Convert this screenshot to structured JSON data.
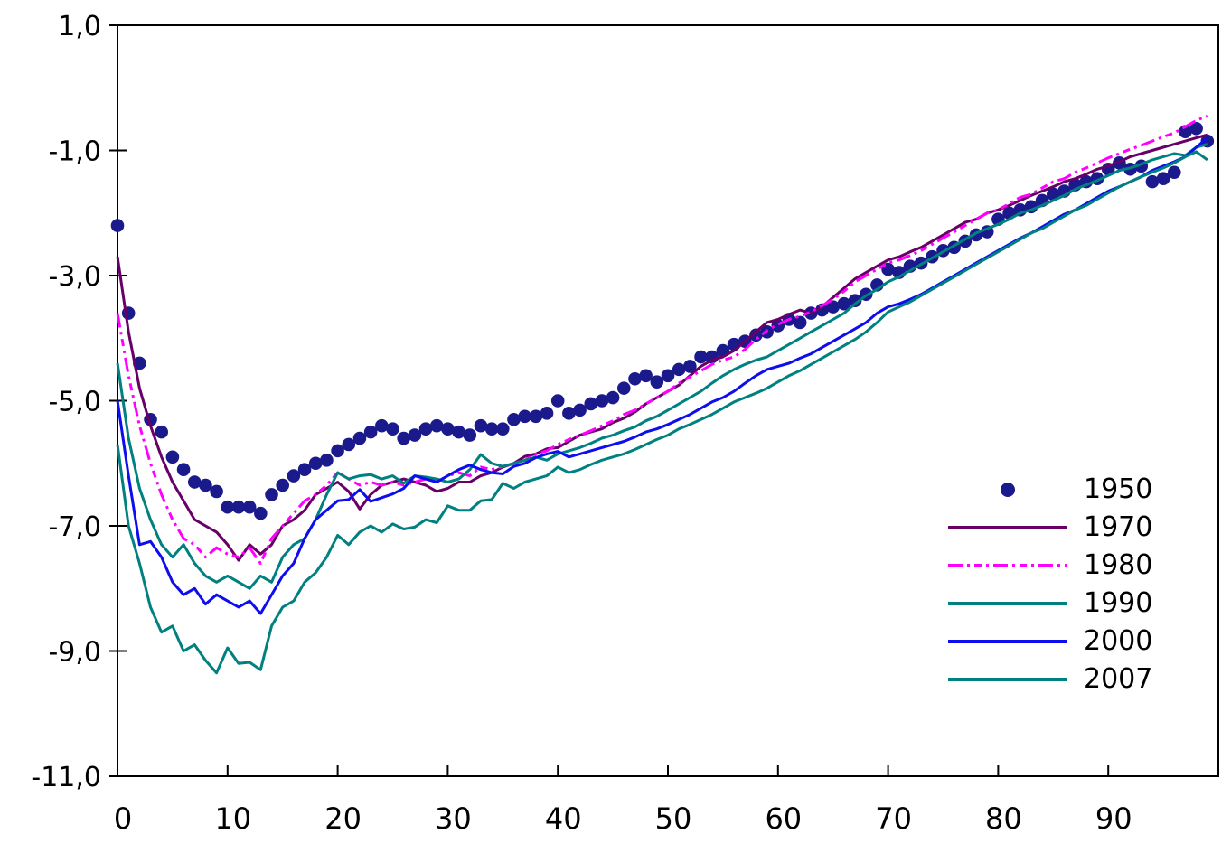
{
  "chart_data": {
    "type": "line",
    "title": "",
    "xlabel": "",
    "ylabel": "",
    "xlim": [
      0,
      100
    ],
    "ylim": [
      -11,
      1
    ],
    "grid": false,
    "legend_position": "right-middle",
    "x_ticks": [
      {
        "v": 0,
        "label": "0"
      },
      {
        "v": 10,
        "label": "10"
      },
      {
        "v": 20,
        "label": "20"
      },
      {
        "v": 30,
        "label": "30"
      },
      {
        "v": 40,
        "label": "40"
      },
      {
        "v": 50,
        "label": "50"
      },
      {
        "v": 60,
        "label": "60"
      },
      {
        "v": 70,
        "label": "70"
      },
      {
        "v": 80,
        "label": "80"
      },
      {
        "v": 90,
        "label": "90"
      }
    ],
    "y_ticks": [
      {
        "v": 1,
        "label": "1,0"
      },
      {
        "v": -1,
        "label": "-1,0"
      },
      {
        "v": -3,
        "label": "-3,0"
      },
      {
        "v": -5,
        "label": "-5,0"
      },
      {
        "v": -7,
        "label": "-7,0"
      },
      {
        "v": -9,
        "label": "-9,0"
      },
      {
        "v": -11,
        "label": "-11,0"
      }
    ],
    "x_start": 0,
    "x_step": 1,
    "series": [
      {
        "name": "1950",
        "kind": "scatter",
        "color": "#1a1a8c",
        "values": [
          -2.2,
          -3.6,
          -4.4,
          -5.3,
          -5.5,
          -5.9,
          -6.1,
          -6.3,
          -6.35,
          -6.45,
          -6.7,
          -6.7,
          -6.7,
          -6.8,
          -6.5,
          -6.35,
          -6.2,
          -6.1,
          -6.0,
          -5.95,
          -5.8,
          -5.7,
          -5.6,
          -5.5,
          -5.4,
          -5.45,
          -5.6,
          -5.55,
          -5.45,
          -5.4,
          -5.45,
          -5.5,
          -5.55,
          -5.4,
          -5.45,
          -5.45,
          -5.3,
          -5.25,
          -5.25,
          -5.2,
          -5.0,
          -5.2,
          -5.15,
          -5.05,
          -5.0,
          -4.95,
          -4.8,
          -4.65,
          -4.6,
          -4.7,
          -4.6,
          -4.5,
          -4.45,
          -4.3,
          -4.3,
          -4.2,
          -4.1,
          -4.05,
          -3.95,
          -3.9,
          -3.8,
          -3.7,
          -3.75,
          -3.6,
          -3.55,
          -3.5,
          -3.45,
          -3.4,
          -3.3,
          -3.15,
          -2.9,
          -2.95,
          -2.85,
          -2.8,
          -2.7,
          -2.6,
          -2.55,
          -2.45,
          -2.35,
          -2.3,
          -2.1,
          -2.0,
          -1.95,
          -1.9,
          -1.8,
          -1.7,
          -1.65,
          -1.55,
          -1.5,
          -1.45,
          -1.3,
          -1.2,
          -1.3,
          -1.25,
          -1.5,
          -1.45,
          -1.35,
          -0.7,
          -0.65,
          -0.85
        ]
      },
      {
        "name": "1970",
        "kind": "line",
        "color": "#670067",
        "values": [
          -2.7,
          -3.9,
          -4.8,
          -5.4,
          -5.9,
          -6.3,
          -6.6,
          -6.9,
          -7.0,
          -7.1,
          -7.3,
          -7.55,
          -7.3,
          -7.45,
          -7.3,
          -7.0,
          -6.9,
          -6.75,
          -6.5,
          -6.4,
          -6.3,
          -6.45,
          -6.73,
          -6.5,
          -6.35,
          -6.3,
          -6.25,
          -6.3,
          -6.35,
          -6.45,
          -6.4,
          -6.3,
          -6.3,
          -6.2,
          -6.15,
          -6.06,
          -6.0,
          -5.89,
          -5.85,
          -5.77,
          -5.75,
          -5.65,
          -5.55,
          -5.5,
          -5.45,
          -5.35,
          -5.28,
          -5.18,
          -5.05,
          -4.95,
          -4.85,
          -4.75,
          -4.6,
          -4.45,
          -4.35,
          -4.3,
          -4.2,
          -4.05,
          -3.9,
          -3.75,
          -3.7,
          -3.62,
          -3.55,
          -3.6,
          -3.5,
          -3.35,
          -3.2,
          -3.05,
          -2.95,
          -2.85,
          -2.75,
          -2.7,
          -2.62,
          -2.55,
          -2.45,
          -2.35,
          -2.25,
          -2.15,
          -2.1,
          -2.0,
          -1.95,
          -1.88,
          -1.8,
          -1.72,
          -1.65,
          -1.58,
          -1.5,
          -1.45,
          -1.38,
          -1.3,
          -1.25,
          -1.18,
          -1.1,
          -1.05,
          -1.0,
          -0.95,
          -0.9,
          -0.85,
          -0.8,
          -0.75
        ]
      },
      {
        "name": "1980",
        "kind": "line",
        "color": "#ff00ff",
        "dash": [
          16,
          5,
          3,
          5,
          8,
          5,
          3,
          5
        ],
        "values": [
          -3.6,
          -4.6,
          -5.4,
          -6.0,
          -6.5,
          -6.9,
          -7.2,
          -7.3,
          -7.5,
          -7.35,
          -7.45,
          -7.5,
          -7.35,
          -7.6,
          -7.2,
          -7.0,
          -6.8,
          -6.6,
          -6.5,
          -6.35,
          -6.15,
          -6.25,
          -6.35,
          -6.3,
          -6.35,
          -6.3,
          -6.35,
          -6.3,
          -6.25,
          -6.3,
          -6.2,
          -6.15,
          -6.2,
          -6.06,
          -6.1,
          -6.05,
          -6.0,
          -5.95,
          -5.85,
          -5.8,
          -5.7,
          -5.62,
          -5.55,
          -5.48,
          -5.4,
          -5.32,
          -5.22,
          -5.15,
          -5.05,
          -4.95,
          -4.85,
          -4.72,
          -4.62,
          -4.52,
          -4.42,
          -4.35,
          -4.3,
          -4.18,
          -4.02,
          -3.88,
          -3.78,
          -3.7,
          -3.65,
          -3.58,
          -3.48,
          -3.38,
          -3.25,
          -3.1,
          -3.0,
          -2.9,
          -2.8,
          -2.75,
          -2.68,
          -2.6,
          -2.5,
          -2.4,
          -2.3,
          -2.2,
          -2.1,
          -2.0,
          -1.95,
          -1.85,
          -1.75,
          -1.7,
          -1.6,
          -1.5,
          -1.45,
          -1.35,
          -1.28,
          -1.2,
          -1.12,
          -1.05,
          -0.98,
          -0.92,
          -0.85,
          -0.78,
          -0.72,
          -0.62,
          -0.52,
          -0.45
        ]
      },
      {
        "name": "1990",
        "kind": "line",
        "color": "#008080",
        "values": [
          -4.4,
          -5.6,
          -6.4,
          -6.9,
          -7.3,
          -7.5,
          -7.3,
          -7.6,
          -7.8,
          -7.9,
          -7.8,
          -7.9,
          -8.0,
          -7.8,
          -7.9,
          -7.5,
          -7.3,
          -7.2,
          -6.9,
          -6.5,
          -6.15,
          -6.25,
          -6.2,
          -6.18,
          -6.25,
          -6.2,
          -6.32,
          -6.2,
          -6.22,
          -6.25,
          -6.3,
          -6.25,
          -6.1,
          -5.86,
          -6.0,
          -6.05,
          -6.0,
          -5.95,
          -5.9,
          -5.95,
          -5.85,
          -5.8,
          -5.75,
          -5.68,
          -5.6,
          -5.55,
          -5.48,
          -5.42,
          -5.32,
          -5.25,
          -5.15,
          -5.05,
          -4.95,
          -4.85,
          -4.72,
          -4.6,
          -4.5,
          -4.42,
          -4.35,
          -4.3,
          -4.2,
          -4.1,
          -4.0,
          -3.9,
          -3.8,
          -3.7,
          -3.6,
          -3.45,
          -3.32,
          -3.22,
          -3.1,
          -3.02,
          -2.92,
          -2.82,
          -2.72,
          -2.62,
          -2.52,
          -2.42,
          -2.32,
          -2.25,
          -2.18,
          -2.1,
          -2.0,
          -1.95,
          -1.88,
          -1.8,
          -1.72,
          -1.62,
          -1.55,
          -1.48,
          -1.4,
          -1.32,
          -1.28,
          -1.22,
          -1.15,
          -1.1,
          -1.05,
          -1.08,
          -0.95,
          -0.9
        ]
      },
      {
        "name": "2000",
        "kind": "line",
        "color": "#0d0dee",
        "values": [
          -5.0,
          -6.2,
          -7.3,
          -7.25,
          -7.5,
          -7.9,
          -8.1,
          -8.0,
          -8.25,
          -8.1,
          -8.2,
          -8.3,
          -8.2,
          -8.4,
          -8.1,
          -7.8,
          -7.6,
          -7.2,
          -6.9,
          -6.75,
          -6.6,
          -6.58,
          -6.42,
          -6.61,
          -6.55,
          -6.49,
          -6.4,
          -6.2,
          -6.25,
          -6.3,
          -6.2,
          -6.1,
          -6.03,
          -6.1,
          -6.15,
          -6.17,
          -6.05,
          -6.0,
          -5.91,
          -5.85,
          -5.81,
          -5.9,
          -5.85,
          -5.8,
          -5.75,
          -5.7,
          -5.65,
          -5.58,
          -5.5,
          -5.45,
          -5.38,
          -5.3,
          -5.22,
          -5.12,
          -5.02,
          -4.95,
          -4.85,
          -4.72,
          -4.6,
          -4.5,
          -4.45,
          -4.4,
          -4.32,
          -4.25,
          -4.15,
          -4.05,
          -3.95,
          -3.85,
          -3.75,
          -3.6,
          -3.5,
          -3.45,
          -3.38,
          -3.3,
          -3.2,
          -3.1,
          -3.0,
          -2.9,
          -2.8,
          -2.7,
          -2.6,
          -2.5,
          -2.4,
          -2.32,
          -2.22,
          -2.12,
          -2.02,
          -1.95,
          -1.85,
          -1.75,
          -1.65,
          -1.58,
          -1.5,
          -1.42,
          -1.32,
          -1.25,
          -1.18,
          -1.1,
          -0.95,
          -0.8
        ]
      },
      {
        "name": "2007",
        "kind": "line",
        "color": "#008080",
        "values": [
          -5.7,
          -7.0,
          -7.6,
          -8.3,
          -8.7,
          -8.6,
          -9.0,
          -8.9,
          -9.15,
          -9.35,
          -8.95,
          -9.2,
          -9.18,
          -9.3,
          -8.6,
          -8.3,
          -8.2,
          -7.9,
          -7.75,
          -7.5,
          -7.15,
          -7.3,
          -7.1,
          -7.0,
          -7.1,
          -6.97,
          -7.05,
          -7.02,
          -6.9,
          -6.95,
          -6.68,
          -6.75,
          -6.75,
          -6.6,
          -6.58,
          -6.32,
          -6.4,
          -6.3,
          -6.25,
          -6.2,
          -6.06,
          -6.15,
          -6.1,
          -6.02,
          -5.95,
          -5.9,
          -5.85,
          -5.78,
          -5.7,
          -5.62,
          -5.55,
          -5.45,
          -5.38,
          -5.3,
          -5.22,
          -5.12,
          -5.02,
          -4.95,
          -4.88,
          -4.8,
          -4.7,
          -4.6,
          -4.52,
          -4.42,
          -4.32,
          -4.22,
          -4.12,
          -4.02,
          -3.9,
          -3.75,
          -3.58,
          -3.5,
          -3.42,
          -3.32,
          -3.22,
          -3.12,
          -3.02,
          -2.92,
          -2.82,
          -2.72,
          -2.62,
          -2.52,
          -2.42,
          -2.32,
          -2.25,
          -2.15,
          -2.05,
          -1.95,
          -1.88,
          -1.78,
          -1.68,
          -1.58,
          -1.5,
          -1.42,
          -1.35,
          -1.28,
          -1.2,
          -1.1,
          -1.02,
          -1.15
        ]
      }
    ]
  },
  "colors": {
    "axis": "#000000",
    "background": "#ffffff",
    "tick_label": "#000000"
  }
}
